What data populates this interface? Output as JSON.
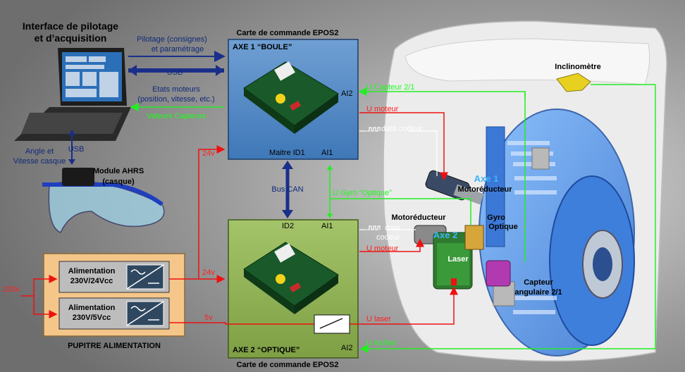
{
  "title_line1": "Interface de pilotage",
  "title_line2": "et d’acquisition",
  "board_top_title": "Carte de commande EPOS2",
  "board_bottom_title": "Carte de commande EPOS2",
  "axe1": {
    "name": "AXE 1 “BOULE”",
    "ai2": "AI2",
    "maitre": "Maitre ID1",
    "ai1": "AI1"
  },
  "axe2": {
    "id2": "ID2",
    "ai1": "AI1",
    "name": "AXE 2 “OPTIQUE”",
    "ai2": "AI2"
  },
  "links": {
    "pilotage1": "Pilotage (consignes)",
    "pilotage2": "et paramétrage",
    "usb_h": "USB",
    "etats1": "Etats moteurs",
    "etats2": "(position, vitesse, etc.)",
    "valeurs": "Valeurs Capteurs",
    "angle1": "Angle et",
    "angle2": "Vitesse casque",
    "usb_v": "USB",
    "bus_can": "Bus CAN",
    "u_gyro": "U Gyro “Optique”"
  },
  "ahrs1": "Module AHRS",
  "ahrs2": "(casque)",
  "signals": {
    "u_capteur": "U Capteur 2/1",
    "u_moteur1": "U moteur",
    "data_codeur1": "data codeur",
    "data2a": "data",
    "data2b": "codeur",
    "u_moteur2": "U moteur",
    "u_laser": "U laser",
    "u_inclino": "U inclino"
  },
  "power": {
    "v230": "230v",
    "v24a": "24v",
    "v24b": "24v",
    "v5": "5v",
    "alim1_l1": "Alimentation",
    "alim1_l2": "230V/24Vcc",
    "alim2_l1": "Alimentation",
    "alim2_l2": "230V/5Vcc",
    "pupitre": "PUPITRE ALIMENTATION"
  },
  "mech": {
    "inclinometre": "Inclinomètre",
    "axe1": "Axe 1",
    "motoreducteur1": "Motoréducteur",
    "motoreducteur2": "Motoréducteur",
    "gyro1": "Gyro",
    "gyro2": "Optique",
    "axe2": "Axe 2",
    "laser": "Laser",
    "capteur1": "Capteur",
    "capteur2": "angulaire 2/1"
  },
  "colors": {
    "signal_green": "#22ee22",
    "power_red": "#ee1111",
    "usb_blue": "#1a2f8a",
    "board_top": "#5b8fc6",
    "board_bottom": "#8fae55",
    "pupitre": "#f5c68a"
  }
}
